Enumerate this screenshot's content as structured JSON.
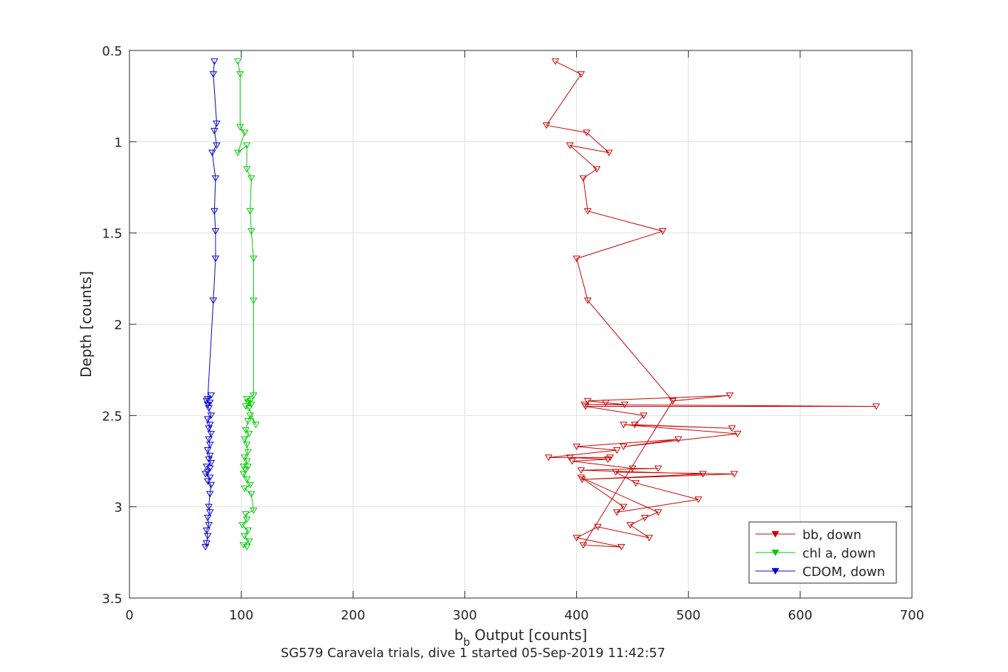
{
  "chart_data": {
    "type": "line",
    "xlabel_main": "b",
    "xlabel_sub": "b",
    "xlabel_rest": " Output [counts]",
    "ylabel": "Depth [counts]",
    "subtitle": "SG579 Caravela trials, dive 1 started 05-Sep-2019 11:42:57",
    "xlim": [
      0,
      700
    ],
    "ylim": [
      0.5,
      3.5
    ],
    "y_reversed": true,
    "grid": true,
    "legend_position": "bottom-right",
    "x_ticks": [
      {
        "value": 0,
        "label": "0"
      },
      {
        "value": 100,
        "label": "100"
      },
      {
        "value": 200,
        "label": "200"
      },
      {
        "value": 300,
        "label": "300"
      },
      {
        "value": 400,
        "label": "400"
      },
      {
        "value": 500,
        "label": "500"
      },
      {
        "value": 600,
        "label": "600"
      },
      {
        "value": 700,
        "label": "700"
      }
    ],
    "y_ticks": [
      {
        "value": 0.5,
        "label": "0.5"
      },
      {
        "value": 1,
        "label": "1"
      },
      {
        "value": 1.5,
        "label": "1.5"
      },
      {
        "value": 2,
        "label": "2"
      },
      {
        "value": 2.5,
        "label": "2.5"
      },
      {
        "value": 3,
        "label": "3"
      },
      {
        "value": 3.5,
        "label": "3.5"
      }
    ],
    "series": [
      {
        "name": "bb, down",
        "color": "#cc0000",
        "marker": "triangle-down",
        "points": [
          [
            381,
            0.56
          ],
          [
            404,
            0.63
          ],
          [
            373,
            0.91
          ],
          [
            409,
            0.95
          ],
          [
            429,
            1.06
          ],
          [
            394,
            1.02
          ],
          [
            418,
            1.15
          ],
          [
            406,
            1.2
          ],
          [
            410,
            1.38
          ],
          [
            477,
            1.49
          ],
          [
            400,
            1.64
          ],
          [
            410,
            1.87
          ],
          [
            486,
            2.42
          ],
          [
            537,
            2.39
          ],
          [
            410,
            2.42
          ],
          [
            426,
            2.43
          ],
          [
            443,
            2.44
          ],
          [
            407,
            2.44
          ],
          [
            668,
            2.45
          ],
          [
            408,
            2.45
          ],
          [
            460,
            2.5
          ],
          [
            452,
            2.55
          ],
          [
            539,
            2.57
          ],
          [
            442,
            2.55
          ],
          [
            544,
            2.6
          ],
          [
            442,
            2.67
          ],
          [
            491,
            2.63
          ],
          [
            400,
            2.67
          ],
          [
            436,
            2.69
          ],
          [
            375,
            2.73
          ],
          [
            430,
            2.73
          ],
          [
            394,
            2.73
          ],
          [
            428,
            2.74
          ],
          [
            396,
            2.75
          ],
          [
            450,
            2.79
          ],
          [
            473,
            2.79
          ],
          [
            404,
            2.8
          ],
          [
            513,
            2.82
          ],
          [
            405,
            2.85
          ],
          [
            541,
            2.82
          ],
          [
            435,
            2.81
          ],
          [
            453,
            2.87
          ],
          [
            509,
            2.96
          ],
          [
            436,
            3.03
          ],
          [
            442,
            3.0
          ],
          [
            404,
            2.84
          ],
          [
            473,
            3.03
          ],
          [
            461,
            3.06
          ],
          [
            448,
            3.1
          ],
          [
            465,
            3.17
          ],
          [
            419,
            3.11
          ],
          [
            400,
            3.17
          ],
          [
            440,
            3.22
          ],
          [
            406,
            3.21
          ],
          [
            486,
            2.42
          ]
        ]
      },
      {
        "name": "chl a, down",
        "color": "#00cc00",
        "marker": "triangle-down",
        "points": [
          [
            97,
            0.56
          ],
          [
            99,
            0.63
          ],
          [
            99,
            0.92
          ],
          [
            103,
            0.95
          ],
          [
            97,
            1.06
          ],
          [
            105,
            1.02
          ],
          [
            105,
            1.15
          ],
          [
            109,
            1.2
          ],
          [
            108,
            1.38
          ],
          [
            109,
            1.49
          ],
          [
            111,
            1.64
          ],
          [
            111,
            1.87
          ],
          [
            111,
            2.39
          ],
          [
            105,
            2.41
          ],
          [
            108,
            2.42
          ],
          [
            106,
            2.43
          ],
          [
            109,
            2.44
          ],
          [
            104,
            2.45
          ],
          [
            107,
            2.46
          ],
          [
            113,
            2.55
          ],
          [
            108,
            2.5
          ],
          [
            106,
            2.53
          ],
          [
            104,
            2.58
          ],
          [
            107,
            2.6
          ],
          [
            103,
            2.63
          ],
          [
            105,
            2.66
          ],
          [
            106,
            2.7
          ],
          [
            103,
            2.73
          ],
          [
            105,
            2.75
          ],
          [
            102,
            2.78
          ],
          [
            106,
            2.78
          ],
          [
            104,
            2.8
          ],
          [
            102,
            2.82
          ],
          [
            105,
            2.85
          ],
          [
            108,
            2.88
          ],
          [
            103,
            2.9
          ],
          [
            109,
            2.93
          ],
          [
            111,
            3.02
          ],
          [
            104,
            3.04
          ],
          [
            105,
            3.07
          ],
          [
            101,
            3.1
          ],
          [
            106,
            3.13
          ],
          [
            103,
            3.16
          ],
          [
            107,
            3.19
          ],
          [
            102,
            3.21
          ],
          [
            105,
            3.22
          ]
        ]
      },
      {
        "name": "CDOM, down",
        "color": "#0000cc",
        "marker": "triangle-down",
        "points": [
          [
            76,
            0.56
          ],
          [
            75,
            0.63
          ],
          [
            78,
            0.9
          ],
          [
            76,
            0.94
          ],
          [
            78,
            1.02
          ],
          [
            74,
            1.06
          ],
          [
            77,
            1.2
          ],
          [
            76,
            1.38
          ],
          [
            77,
            1.49
          ],
          [
            77,
            1.64
          ],
          [
            75,
            1.87
          ],
          [
            70,
            2.41
          ],
          [
            73,
            2.39
          ],
          [
            69,
            2.42
          ],
          [
            72,
            2.43
          ],
          [
            70,
            2.44
          ],
          [
            71,
            2.46
          ],
          [
            73,
            2.5
          ],
          [
            70,
            2.52
          ],
          [
            72,
            2.55
          ],
          [
            71,
            2.57
          ],
          [
            73,
            2.6
          ],
          [
            71,
            2.63
          ],
          [
            72,
            2.66
          ],
          [
            70,
            2.69
          ],
          [
            72,
            2.72
          ],
          [
            71,
            2.74
          ],
          [
            73,
            2.76
          ],
          [
            69,
            2.78
          ],
          [
            72,
            2.79
          ],
          [
            70,
            2.81
          ],
          [
            68,
            2.82
          ],
          [
            72,
            2.84
          ],
          [
            70,
            2.86
          ],
          [
            73,
            2.88
          ],
          [
            72,
            2.93
          ],
          [
            71,
            3.0
          ],
          [
            72,
            3.03
          ],
          [
            70,
            3.06
          ],
          [
            71,
            3.1
          ],
          [
            69,
            3.13
          ],
          [
            70,
            3.16
          ],
          [
            69,
            3.2
          ],
          [
            68,
            3.22
          ]
        ]
      }
    ]
  }
}
